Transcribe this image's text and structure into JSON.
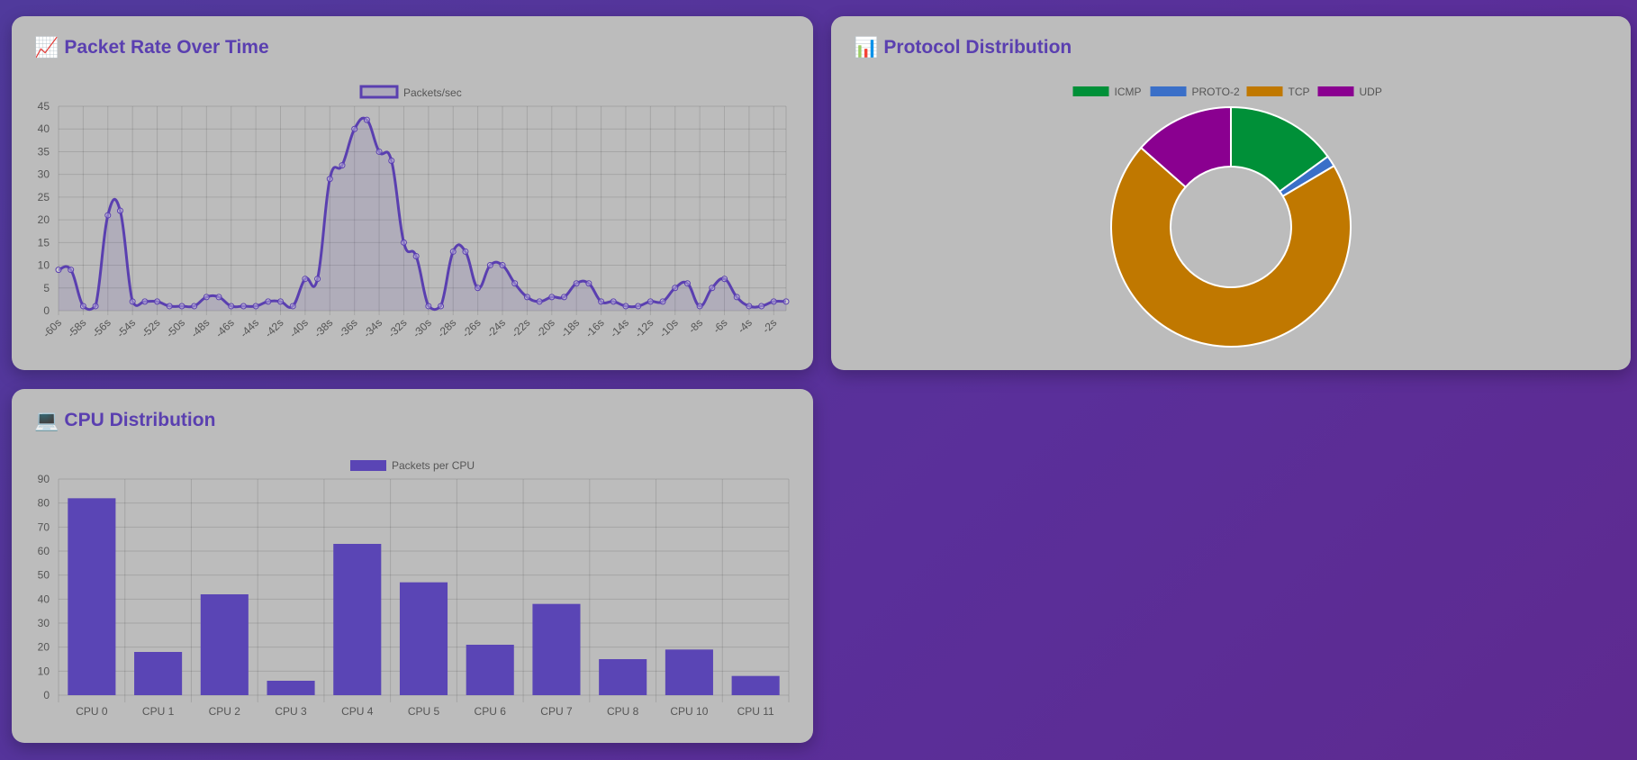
{
  "cards": {
    "rate": {
      "title": "Packet Rate Over Time",
      "icon": "chart-increasing-icon",
      "icon_glyph": "📈"
    },
    "proto": {
      "title": "Protocol Distribution",
      "icon": "bar-chart-icon",
      "icon_glyph": "📊"
    },
    "cpu": {
      "title": "CPU Distribution",
      "icon": "laptop-icon",
      "icon_glyph": "💻"
    }
  },
  "chart_data": [
    {
      "type": "line",
      "legend": [
        "Packets/sec"
      ],
      "legend_placement": "top-center",
      "x": [
        "-60s",
        "-59s",
        "-58s",
        "-57s",
        "-56s",
        "-55s",
        "-54s",
        "-53s",
        "-52s",
        "-51s",
        "-50s",
        "-49s",
        "-48s",
        "-47s",
        "-46s",
        "-45s",
        "-44s",
        "-43s",
        "-42s",
        "-41s",
        "-40s",
        "-39s",
        "-38s",
        "-37s",
        "-36s",
        "-35s",
        "-34s",
        "-33s",
        "-32s",
        "-31s",
        "-30s",
        "-29s",
        "-28s",
        "-27s",
        "-26s",
        "-25s",
        "-24s",
        "-23s",
        "-22s",
        "-21s",
        "-20s",
        "-19s",
        "-18s",
        "-17s",
        "-16s",
        "-15s",
        "-14s",
        "-13s",
        "-12s",
        "-11s",
        "-10s",
        "-9s",
        "-8s",
        "-7s",
        "-6s",
        "-5s",
        "-4s",
        "-3s",
        "-2s",
        "-1s"
      ],
      "x_tick_labels": [
        "-60s",
        "-58s",
        "-56s",
        "-54s",
        "-52s",
        "-50s",
        "-48s",
        "-46s",
        "-44s",
        "-42s",
        "-40s",
        "-38s",
        "-36s",
        "-34s",
        "-32s",
        "-30s",
        "-28s",
        "-26s",
        "-24s",
        "-22s",
        "-20s",
        "-18s",
        "-16s",
        "-14s",
        "-12s",
        "-10s",
        "-8s",
        "-6s",
        "-4s",
        "-2s"
      ],
      "series": [
        {
          "name": "Packets/sec",
          "color": "#5a3fb0",
          "values": [
            9,
            9,
            1,
            1,
            21,
            22,
            2,
            2,
            2,
            1,
            1,
            1,
            3,
            3,
            1,
            1,
            1,
            2,
            2,
            1,
            7,
            7,
            29,
            32,
            40,
            42,
            35,
            33,
            15,
            12,
            1,
            1,
            13,
            13,
            5,
            10,
            10,
            6,
            3,
            2,
            3,
            3,
            6,
            6,
            2,
            2,
            1,
            1,
            2,
            2,
            5,
            6,
            1,
            5,
            7,
            3,
            1,
            1,
            2,
            2
          ]
        }
      ],
      "ylim": [
        0,
        45
      ],
      "yticks": [
        0,
        5,
        10,
        15,
        20,
        25,
        30,
        35,
        40,
        45
      ],
      "grid": true
    },
    {
      "type": "pie",
      "donut": true,
      "legend_placement": "top-center",
      "labels": [
        "ICMP",
        "PROTO-2",
        "TCP",
        "UDP"
      ],
      "values": [
        15,
        1.5,
        70,
        13.5
      ],
      "colors": [
        "#009038",
        "#3a6fc8",
        "#c07800",
        "#8a0090"
      ]
    },
    {
      "type": "bar",
      "legend": [
        "Packets per CPU"
      ],
      "legend_placement": "top-center",
      "categories": [
        "CPU 0",
        "CPU 1",
        "CPU 2",
        "CPU 3",
        "CPU 4",
        "CPU 5",
        "CPU 6",
        "CPU 7",
        "CPU 8",
        "CPU 10",
        "CPU 11"
      ],
      "series": [
        {
          "name": "Packets per CPU",
          "color": "#5a45b5",
          "values": [
            82,
            18,
            42,
            6,
            63,
            47,
            21,
            38,
            15,
            19,
            8
          ]
        }
      ],
      "ylim": [
        0,
        90
      ],
      "yticks": [
        0,
        10,
        20,
        30,
        40,
        50,
        60,
        70,
        80,
        90
      ],
      "grid": true
    }
  ]
}
